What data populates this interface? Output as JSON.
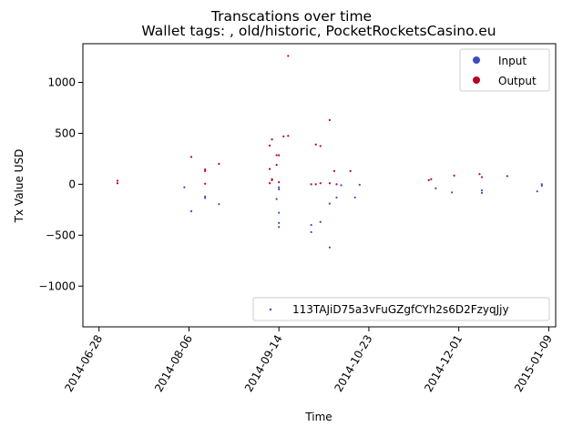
{
  "chart_data": {
    "type": "scatter",
    "title": "Transcations over time",
    "subtitle": "Wallet tags: , old/historic, PocketRocketsCasino.eu",
    "xlabel": "Time",
    "ylabel": "Tx Value USD",
    "xlim": [
      "2014-06-21",
      "2015-01-12"
    ],
    "ylim": [
      -1400,
      1380
    ],
    "x_ticks": [
      "2014-06-28",
      "2014-08-06",
      "2014-09-14",
      "2014-10-23",
      "2014-12-01",
      "2015-01-09"
    ],
    "y_ticks": [
      {
        "value": -1000,
        "label": "−1000"
      },
      {
        "value": -500,
        "label": "−500"
      },
      {
        "value": 0,
        "label": "0"
      },
      {
        "value": 500,
        "label": "500"
      },
      {
        "value": 1000,
        "label": "1000"
      }
    ],
    "grid": false,
    "legend_top": {
      "position": "top-right",
      "entries": [
        {
          "label": "Input",
          "color": "#3b4cc0"
        },
        {
          "label": "Output",
          "color": "#b40426"
        }
      ]
    },
    "legend_bottom": {
      "position": "bottom-right",
      "label": "113TAJiD75a3vFuGZgfCYh2s6D2FzyqJjy",
      "color": "#3b4cc0"
    },
    "series": [
      {
        "name": "Output",
        "color": "#b40426",
        "points": [
          [
            "2014-07-06",
            10
          ],
          [
            "2014-07-06",
            35
          ],
          [
            "2014-08-07",
            268
          ],
          [
            "2014-08-13",
            145
          ],
          [
            "2014-08-13",
            130
          ],
          [
            "2014-08-13",
            5
          ],
          [
            "2014-08-19",
            200
          ],
          [
            "2014-09-10",
            380
          ],
          [
            "2014-09-10",
            150
          ],
          [
            "2014-09-10",
            10
          ],
          [
            "2014-09-11",
            440
          ],
          [
            "2014-09-11",
            40
          ],
          [
            "2014-09-11",
            50
          ],
          [
            "2014-09-13",
            285
          ],
          [
            "2014-09-13",
            190
          ],
          [
            "2014-09-14",
            285
          ],
          [
            "2014-09-14",
            20
          ],
          [
            "2014-09-16",
            470
          ],
          [
            "2014-09-18",
            475
          ],
          [
            "2014-09-18",
            1260
          ],
          [
            "2014-09-28",
            0
          ],
          [
            "2014-09-30",
            390
          ],
          [
            "2014-09-30",
            0
          ],
          [
            "2014-10-02",
            375
          ],
          [
            "2014-10-02",
            10
          ],
          [
            "2014-10-06",
            630
          ],
          [
            "2014-10-06",
            10
          ],
          [
            "2014-10-08",
            130
          ],
          [
            "2014-10-09",
            0
          ],
          [
            "2014-10-15",
            130
          ],
          [
            "2014-11-18",
            40
          ],
          [
            "2014-11-19",
            50
          ],
          [
            "2014-11-29",
            85
          ],
          [
            "2014-12-10",
            100
          ],
          [
            "2014-12-11",
            70
          ],
          [
            "2014-12-22",
            80
          ]
        ]
      },
      {
        "name": "Input",
        "color": "#3b4cc0",
        "points": [
          [
            "2014-08-04",
            -30
          ],
          [
            "2014-08-07",
            -265
          ],
          [
            "2014-08-13",
            -120
          ],
          [
            "2014-08-13",
            -135
          ],
          [
            "2014-08-19",
            -195
          ],
          [
            "2014-09-13",
            -145
          ],
          [
            "2014-09-14",
            -380
          ],
          [
            "2014-09-14",
            -420
          ],
          [
            "2014-09-14",
            -280
          ],
          [
            "2014-09-14",
            -30
          ],
          [
            "2014-09-14",
            -50
          ],
          [
            "2014-09-28",
            -470
          ],
          [
            "2014-09-28",
            -400
          ],
          [
            "2014-10-02",
            -370
          ],
          [
            "2014-10-06",
            -620
          ],
          [
            "2014-10-06",
            -190
          ],
          [
            "2014-10-09",
            -130
          ],
          [
            "2014-10-11",
            -10
          ],
          [
            "2014-10-17",
            -130
          ],
          [
            "2014-10-19",
            -5
          ],
          [
            "2014-11-21",
            -40
          ],
          [
            "2014-11-28",
            -80
          ],
          [
            "2014-12-11",
            -60
          ],
          [
            "2014-12-11",
            -85
          ],
          [
            "2015-01-04",
            -70
          ],
          [
            "2015-01-06",
            0
          ],
          [
            "2015-01-06",
            -15
          ]
        ]
      }
    ]
  }
}
